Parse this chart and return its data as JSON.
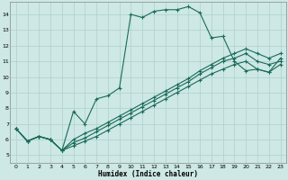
{
  "xlabel": "Humidex (Indice chaleur)",
  "bg_color": "#cde8e5",
  "line_color": "#1a6b5a",
  "grid_color": "#aed0cc",
  "xlim": [
    -0.5,
    23.5
  ],
  "ylim": [
    4.5,
    14.8
  ],
  "yticks": [
    5,
    6,
    7,
    8,
    9,
    10,
    11,
    12,
    13,
    14
  ],
  "xticks": [
    0,
    1,
    2,
    3,
    4,
    5,
    6,
    7,
    8,
    9,
    10,
    11,
    12,
    13,
    14,
    15,
    16,
    17,
    18,
    19,
    20,
    21,
    22,
    23
  ],
  "series": [
    {
      "x": [
        0,
        1,
        2,
        3,
        4,
        5,
        6,
        7,
        8,
        9,
        10,
        11,
        12,
        13,
        14,
        15,
        16,
        17,
        18,
        19,
        20,
        21,
        22,
        23
      ],
      "y": [
        6.7,
        5.9,
        6.2,
        6.0,
        5.3,
        7.8,
        7.0,
        8.6,
        8.8,
        9.3,
        14.0,
        13.8,
        14.2,
        14.3,
        14.3,
        14.5,
        14.1,
        12.5,
        12.6,
        11.0,
        10.4,
        10.5,
        10.3,
        11.2
      ]
    },
    {
      "x": [
        0,
        1,
        2,
        3,
        4,
        5,
        6,
        7,
        8,
        9,
        10,
        11,
        12,
        13,
        14,
        15,
        16,
        17,
        18,
        19,
        20,
        21,
        22,
        23
      ],
      "y": [
        6.7,
        5.9,
        6.2,
        6.0,
        5.3,
        6.0,
        6.4,
        6.7,
        7.1,
        7.5,
        7.9,
        8.3,
        8.7,
        9.1,
        9.5,
        9.9,
        10.4,
        10.8,
        11.2,
        11.5,
        11.8,
        11.5,
        11.2,
        11.5
      ]
    },
    {
      "x": [
        0,
        1,
        2,
        3,
        4,
        5,
        6,
        7,
        8,
        9,
        10,
        11,
        12,
        13,
        14,
        15,
        16,
        17,
        18,
        19,
        20,
        21,
        22,
        23
      ],
      "y": [
        6.7,
        5.9,
        6.2,
        6.0,
        5.3,
        5.8,
        6.1,
        6.5,
        6.9,
        7.3,
        7.7,
        8.1,
        8.5,
        8.9,
        9.3,
        9.7,
        10.2,
        10.6,
        11.0,
        11.2,
        11.5,
        11.0,
        10.8,
        11.0
      ]
    },
    {
      "x": [
        0,
        1,
        2,
        3,
        4,
        5,
        6,
        7,
        8,
        9,
        10,
        11,
        12,
        13,
        14,
        15,
        16,
        17,
        18,
        19,
        20,
        21,
        22,
        23
      ],
      "y": [
        6.7,
        5.9,
        6.2,
        6.0,
        5.3,
        5.6,
        5.9,
        6.2,
        6.6,
        7.0,
        7.4,
        7.8,
        8.2,
        8.6,
        9.0,
        9.4,
        9.8,
        10.2,
        10.5,
        10.8,
        11.0,
        10.5,
        10.3,
        10.8
      ]
    }
  ]
}
